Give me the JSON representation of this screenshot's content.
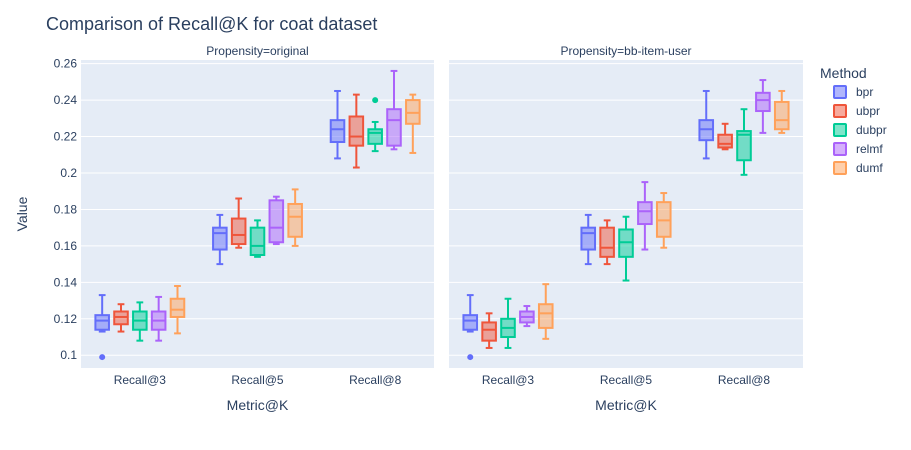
{
  "chart_data": {
    "type": "box",
    "title": "Comparison of Recall@K for coat dataset",
    "xlabel": "Metric@K",
    "ylabel": "Value",
    "categories": [
      "Recall@3",
      "Recall@5",
      "Recall@8"
    ],
    "ylim": [
      0.093,
      0.262
    ],
    "yticks": [
      0.1,
      0.12,
      0.14,
      0.16,
      0.18,
      0.2,
      0.22,
      0.24,
      0.26
    ],
    "ytick_labels": [
      "0.1",
      "0.12",
      "0.14",
      "0.16",
      "0.18",
      "0.2",
      "0.22",
      "0.24",
      "0.26"
    ],
    "grid": true,
    "legend": {
      "title": "Method",
      "placement": "right"
    },
    "series": [
      {
        "name": "bpr",
        "color": "#636efa"
      },
      {
        "name": "ubpr",
        "color": "#ef553b"
      },
      {
        "name": "dubpr",
        "color": "#00cc96"
      },
      {
        "name": "relmf",
        "color": "#ab63fa"
      },
      {
        "name": "dumf",
        "color": "#ffa15a"
      }
    ],
    "panels": [
      {
        "label": "Propensity=original",
        "boxes": [
          [
            {
              "min": 0.113,
              "q1": 0.114,
              "median": 0.119,
              "q3": 0.122,
              "max": 0.133,
              "outliers": [
                0.099
              ]
            },
            {
              "min": 0.113,
              "q1": 0.117,
              "median": 0.121,
              "q3": 0.124,
              "max": 0.128,
              "outliers": []
            },
            {
              "min": 0.108,
              "q1": 0.114,
              "median": 0.119,
              "q3": 0.124,
              "max": 0.129,
              "outliers": []
            },
            {
              "min": 0.108,
              "q1": 0.114,
              "median": 0.119,
              "q3": 0.124,
              "max": 0.132,
              "outliers": []
            },
            {
              "min": 0.112,
              "q1": 0.121,
              "median": 0.125,
              "q3": 0.131,
              "max": 0.138,
              "outliers": []
            }
          ],
          [
            {
              "min": 0.15,
              "q1": 0.158,
              "median": 0.167,
              "q3": 0.17,
              "max": 0.177,
              "outliers": []
            },
            {
              "min": 0.159,
              "q1": 0.161,
              "median": 0.166,
              "q3": 0.175,
              "max": 0.186,
              "outliers": []
            },
            {
              "min": 0.154,
              "q1": 0.155,
              "median": 0.16,
              "q3": 0.17,
              "max": 0.174,
              "outliers": []
            },
            {
              "min": 0.161,
              "q1": 0.162,
              "median": 0.17,
              "q3": 0.185,
              "max": 0.187,
              "outliers": []
            },
            {
              "min": 0.16,
              "q1": 0.165,
              "median": 0.176,
              "q3": 0.183,
              "max": 0.191,
              "outliers": []
            }
          ],
          [
            {
              "min": 0.208,
              "q1": 0.217,
              "median": 0.224,
              "q3": 0.229,
              "max": 0.245,
              "outliers": []
            },
            {
              "min": 0.203,
              "q1": 0.215,
              "median": 0.22,
              "q3": 0.231,
              "max": 0.243,
              "outliers": []
            },
            {
              "min": 0.212,
              "q1": 0.216,
              "median": 0.222,
              "q3": 0.224,
              "max": 0.228,
              "outliers": [
                0.24
              ]
            },
            {
              "min": 0.213,
              "q1": 0.215,
              "median": 0.229,
              "q3": 0.235,
              "max": 0.256,
              "outliers": []
            },
            {
              "min": 0.211,
              "q1": 0.227,
              "median": 0.233,
              "q3": 0.24,
              "max": 0.243,
              "outliers": []
            }
          ]
        ]
      },
      {
        "label": "Propensity=bb-item-user",
        "boxes": [
          [
            {
              "min": 0.113,
              "q1": 0.114,
              "median": 0.119,
              "q3": 0.122,
              "max": 0.133,
              "outliers": [
                0.099
              ]
            },
            {
              "min": 0.104,
              "q1": 0.108,
              "median": 0.114,
              "q3": 0.118,
              "max": 0.123,
              "outliers": []
            },
            {
              "min": 0.104,
              "q1": 0.11,
              "median": 0.115,
              "q3": 0.12,
              "max": 0.131,
              "outliers": []
            },
            {
              "min": 0.116,
              "q1": 0.118,
              "median": 0.121,
              "q3": 0.124,
              "max": 0.127,
              "outliers": []
            },
            {
              "min": 0.109,
              "q1": 0.115,
              "median": 0.123,
              "q3": 0.128,
              "max": 0.139,
              "outliers": []
            }
          ],
          [
            {
              "min": 0.15,
              "q1": 0.158,
              "median": 0.167,
              "q3": 0.17,
              "max": 0.177,
              "outliers": []
            },
            {
              "min": 0.15,
              "q1": 0.154,
              "median": 0.159,
              "q3": 0.17,
              "max": 0.174,
              "outliers": []
            },
            {
              "min": 0.141,
              "q1": 0.154,
              "median": 0.162,
              "q3": 0.169,
              "max": 0.176,
              "outliers": []
            },
            {
              "min": 0.158,
              "q1": 0.172,
              "median": 0.179,
              "q3": 0.184,
              "max": 0.195,
              "outliers": []
            },
            {
              "min": 0.159,
              "q1": 0.165,
              "median": 0.174,
              "q3": 0.184,
              "max": 0.189,
              "outliers": []
            }
          ],
          [
            {
              "min": 0.208,
              "q1": 0.218,
              "median": 0.224,
              "q3": 0.229,
              "max": 0.245,
              "outliers": []
            },
            {
              "min": 0.213,
              "q1": 0.214,
              "median": 0.216,
              "q3": 0.221,
              "max": 0.227,
              "outliers": []
            },
            {
              "min": 0.199,
              "q1": 0.207,
              "median": 0.221,
              "q3": 0.223,
              "max": 0.235,
              "outliers": []
            },
            {
              "min": 0.222,
              "q1": 0.234,
              "median": 0.24,
              "q3": 0.244,
              "max": 0.251,
              "outliers": []
            },
            {
              "min": 0.222,
              "q1": 0.224,
              "median": 0.229,
              "q3": 0.239,
              "max": 0.245,
              "outliers": []
            }
          ]
        ]
      }
    ]
  }
}
